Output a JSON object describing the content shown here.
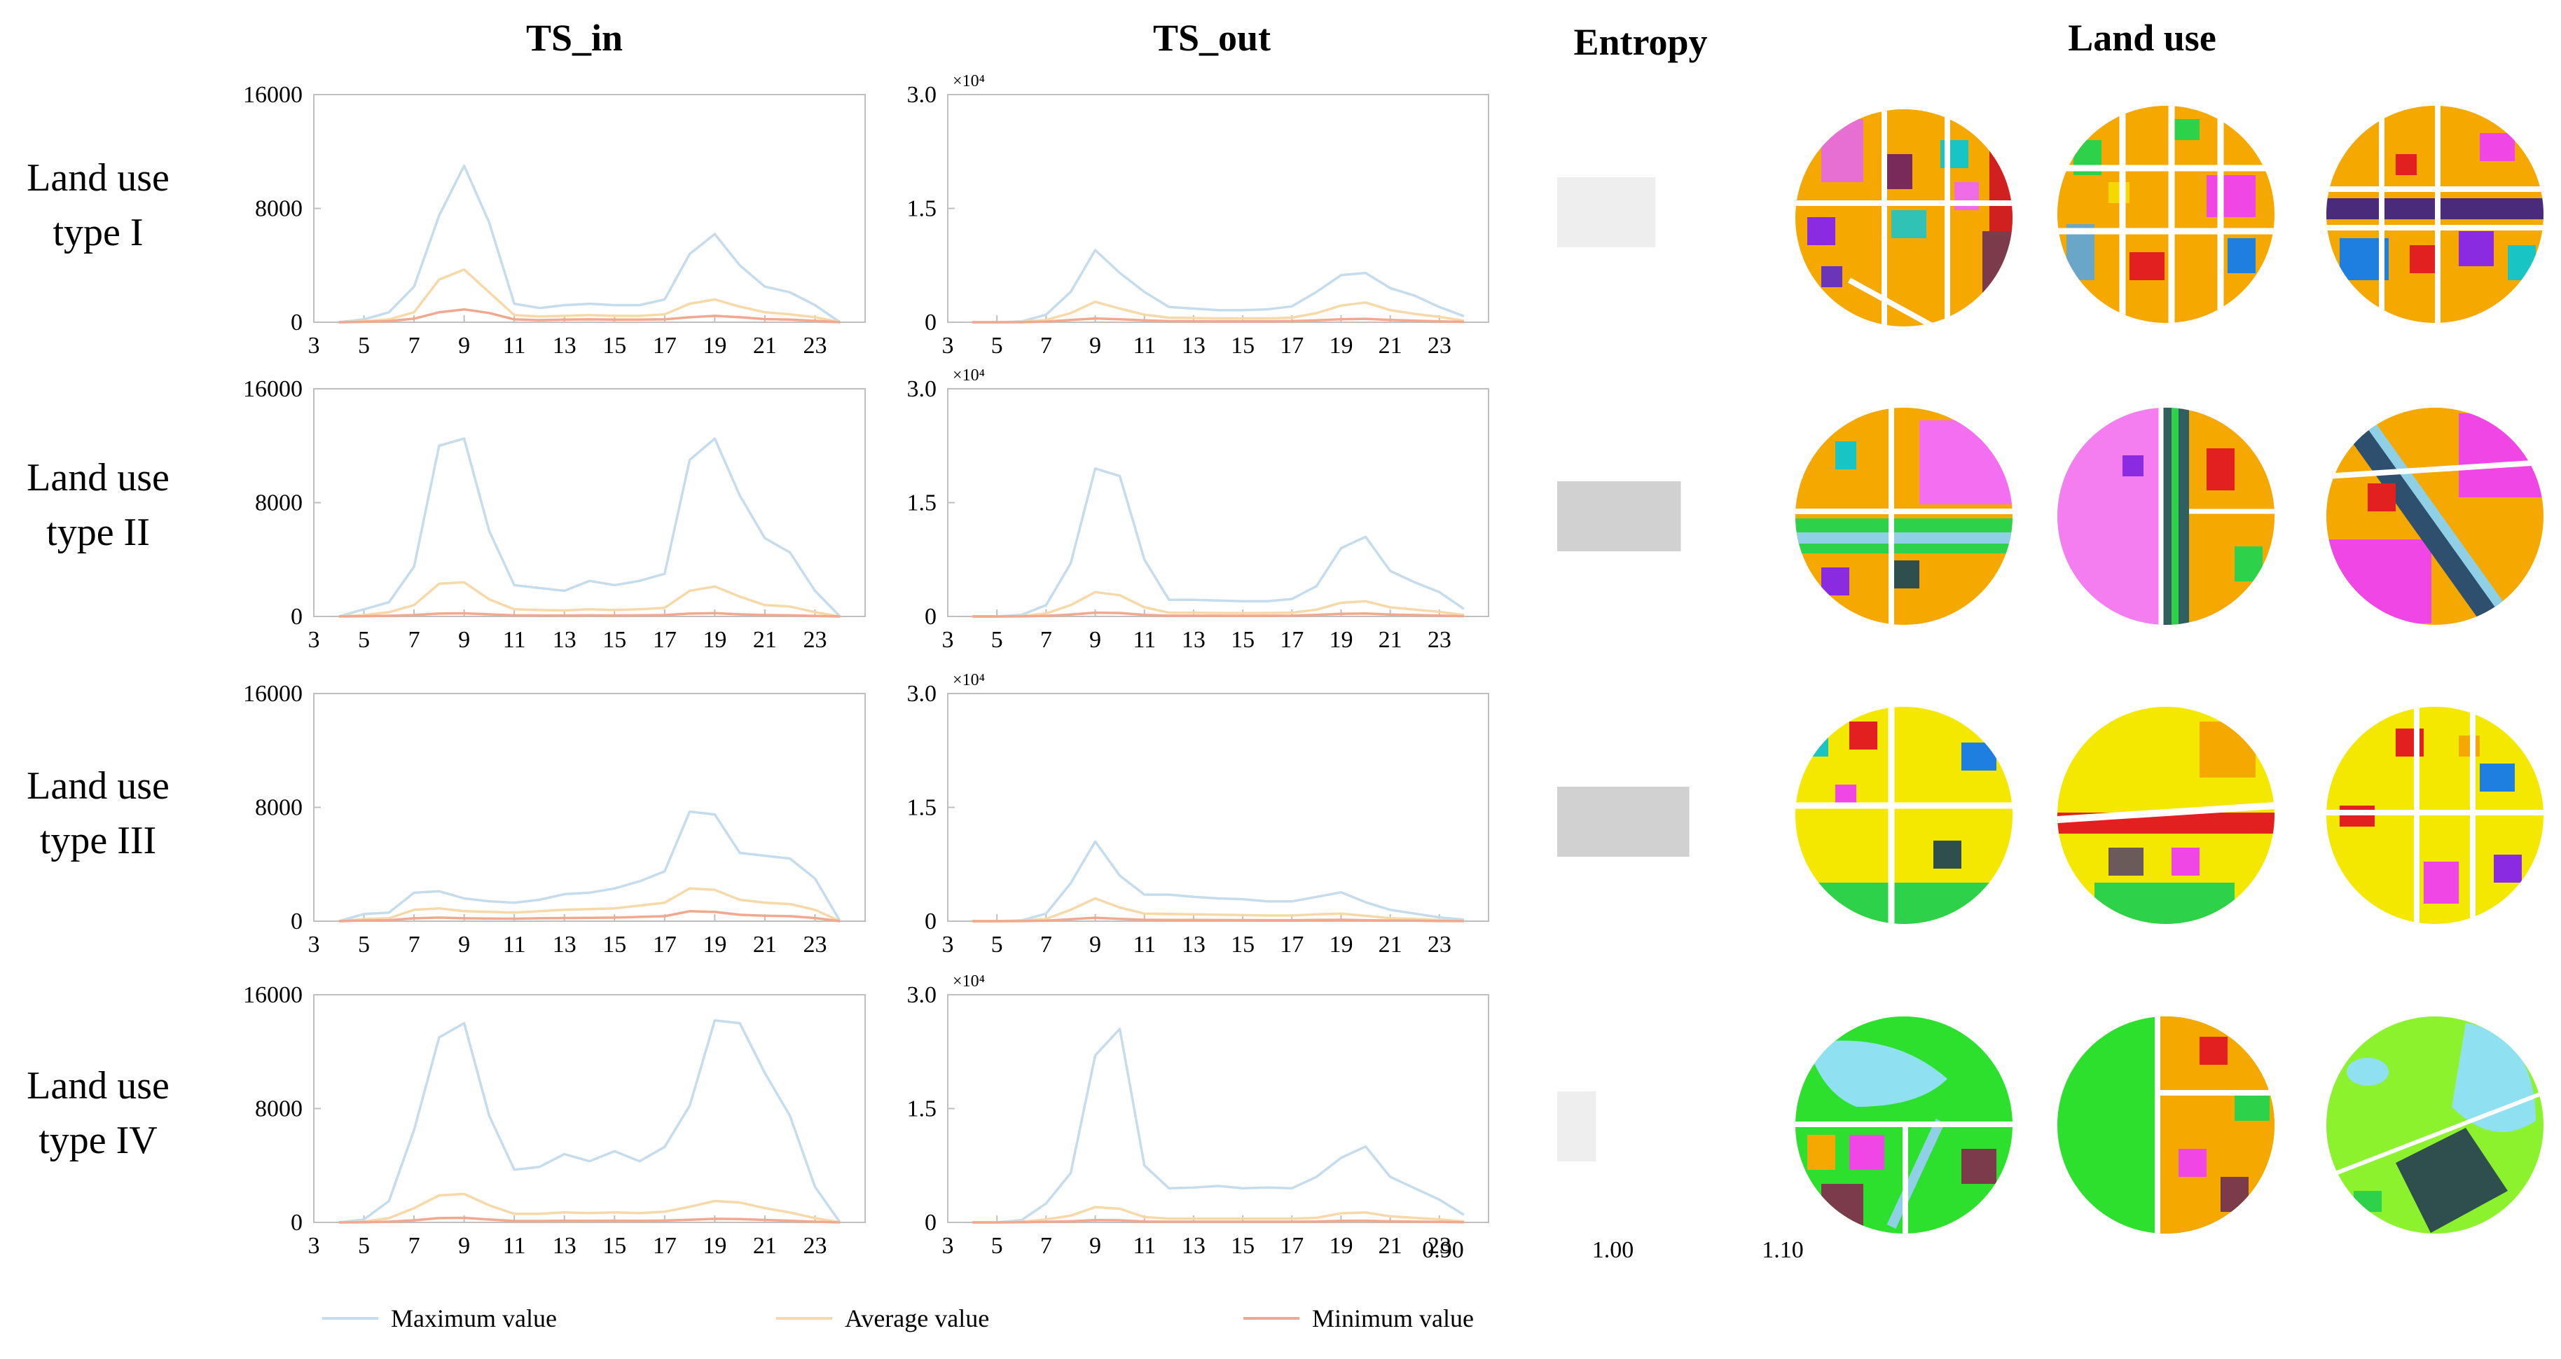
{
  "headers": {
    "ts_in": "TS_in",
    "ts_out": "TS_out",
    "entropy": "Entropy",
    "land_use": "Land use"
  },
  "row_labels": [
    [
      "Land use",
      "type I"
    ],
    [
      "Land use",
      "type II"
    ],
    [
      "Land use",
      "type III"
    ],
    [
      "Land use",
      "type IV"
    ]
  ],
  "legend": [
    {
      "label": "Maximum value",
      "color": "#c5dced"
    },
    {
      "label": "Average value",
      "color": "#f6d9a8"
    },
    {
      "label": "Minimum value",
      "color": "#f1a88e"
    }
  ],
  "colors": {
    "max": "#c5dced",
    "avg": "#f6d9a8",
    "min": "#f1a88e",
    "axis": "#bfbfbf",
    "entropy_light": "#eeeeee",
    "entropy_dark": "#d2d1d2"
  },
  "chart_data": [
    {
      "type": "line",
      "panel": "TS_in",
      "row": "Land use type I",
      "x": [
        4,
        5,
        6,
        7,
        8,
        9,
        10,
        11,
        12,
        13,
        14,
        15,
        16,
        17,
        18,
        19,
        20,
        21,
        22,
        23,
        24
      ],
      "series": [
        {
          "name": "Maximum value",
          "values": [
            0,
            200,
            700,
            2500,
            7500,
            11000,
            7000,
            1300,
            1000,
            1200,
            1300,
            1200,
            1200,
            1600,
            4800,
            6200,
            4000,
            2500,
            2100,
            1200,
            0
          ]
        },
        {
          "name": "Average value",
          "values": [
            0,
            60,
            200,
            700,
            3000,
            3700,
            2100,
            500,
            400,
            450,
            500,
            450,
            450,
            550,
            1300,
            1600,
            1100,
            700,
            550,
            350,
            0
          ]
        },
        {
          "name": "Minimum value",
          "values": [
            0,
            30,
            80,
            250,
            700,
            900,
            650,
            200,
            150,
            180,
            200,
            180,
            180,
            200,
            350,
            450,
            350,
            220,
            180,
            100,
            0
          ]
        }
      ],
      "ylim": [
        0,
        16000
      ],
      "yticks": [
        "0",
        "8000",
        "16000"
      ],
      "xticks": [
        "3",
        "5",
        "7",
        "9",
        "11",
        "13",
        "15",
        "17",
        "19",
        "21",
        "23"
      ]
    },
    {
      "type": "line",
      "panel": "TS_out",
      "row": "Land use type I",
      "x": [
        4,
        5,
        6,
        7,
        8,
        9,
        10,
        11,
        12,
        13,
        14,
        15,
        16,
        17,
        18,
        19,
        20,
        21,
        22,
        23,
        24
      ],
      "series": [
        {
          "name": "Maximum value",
          "values": [
            0,
            0,
            100,
            1000,
            4000,
            9500,
            6500,
            4000,
            2000,
            1800,
            1600,
            1600,
            1700,
            2100,
            4000,
            6200,
            6500,
            4500,
            3500,
            2000,
            800
          ]
        },
        {
          "name": "Average value",
          "values": [
            0,
            0,
            40,
            300,
            1200,
            2700,
            1800,
            1000,
            600,
            550,
            500,
            500,
            500,
            600,
            1200,
            2200,
            2600,
            1600,
            1100,
            700,
            200
          ]
        },
        {
          "name": "Minimum value",
          "values": [
            0,
            0,
            10,
            80,
            300,
            500,
            400,
            250,
            150,
            130,
            120,
            120,
            120,
            150,
            250,
            400,
            450,
            300,
            200,
            120,
            50
          ]
        }
      ],
      "ylim": [
        0,
        30000
      ],
      "yticks": [
        "0",
        "1.5",
        "3.0"
      ],
      "multiplier": "×10⁴",
      "xticks": [
        "3",
        "5",
        "7",
        "9",
        "11",
        "13",
        "15",
        "17",
        "19",
        "21",
        "23"
      ]
    },
    {
      "type": "line",
      "panel": "TS_in",
      "row": "Land use type II",
      "x": [
        4,
        5,
        6,
        7,
        8,
        9,
        10,
        11,
        12,
        13,
        14,
        15,
        16,
        17,
        18,
        19,
        20,
        21,
        22,
        23,
        24
      ],
      "series": [
        {
          "name": "Maximum value",
          "values": [
            0,
            500,
            1000,
            3500,
            12000,
            12500,
            6000,
            2200,
            2000,
            1800,
            2500,
            2200,
            2500,
            3000,
            11000,
            12500,
            8500,
            5500,
            4500,
            1800,
            0
          ]
        },
        {
          "name": "Average value",
          "values": [
            0,
            100,
            300,
            800,
            2300,
            2400,
            1200,
            500,
            450,
            420,
            500,
            450,
            500,
            600,
            1800,
            2100,
            1400,
            800,
            700,
            300,
            0
          ]
        },
        {
          "name": "Minimum value",
          "values": [
            0,
            20,
            50,
            100,
            200,
            220,
            150,
            80,
            70,
            60,
            80,
            70,
            80,
            100,
            200,
            230,
            150,
            100,
            80,
            40,
            0
          ]
        }
      ],
      "ylim": [
        0,
        16000
      ],
      "yticks": [
        "0",
        "8000",
        "16000"
      ],
      "xticks": [
        "3",
        "5",
        "7",
        "9",
        "11",
        "13",
        "15",
        "17",
        "19",
        "21",
        "23"
      ]
    },
    {
      "type": "line",
      "panel": "TS_out",
      "row": "Land use type II",
      "x": [
        4,
        5,
        6,
        7,
        8,
        9,
        10,
        11,
        12,
        13,
        14,
        15,
        16,
        17,
        18,
        19,
        20,
        21,
        22,
        23,
        24
      ],
      "series": [
        {
          "name": "Maximum value",
          "values": [
            0,
            0,
            200,
            1500,
            7000,
            19500,
            18500,
            7500,
            2200,
            2200,
            2100,
            2000,
            2000,
            2300,
            4000,
            9000,
            10500,
            6000,
            4500,
            3200,
            1000
          ]
        },
        {
          "name": "Average value",
          "values": [
            0,
            0,
            50,
            400,
            1500,
            3200,
            2800,
            1200,
            500,
            500,
            450,
            450,
            450,
            500,
            900,
            1800,
            2000,
            1200,
            900,
            600,
            200
          ]
        },
        {
          "name": "Minimum value",
          "values": [
            0,
            0,
            10,
            80,
            250,
            500,
            450,
            200,
            100,
            100,
            90,
            90,
            90,
            100,
            200,
            350,
            400,
            250,
            180,
            120,
            40
          ]
        }
      ],
      "ylim": [
        0,
        30000
      ],
      "yticks": [
        "0",
        "1.5",
        "3.0"
      ],
      "multiplier": "×10⁴",
      "xticks": [
        "3",
        "5",
        "7",
        "9",
        "11",
        "13",
        "15",
        "17",
        "19",
        "21",
        "23"
      ]
    },
    {
      "type": "line",
      "panel": "TS_in",
      "row": "Land use type III",
      "x": [
        4,
        5,
        6,
        7,
        8,
        9,
        10,
        11,
        12,
        13,
        14,
        15,
        16,
        17,
        18,
        19,
        20,
        21,
        22,
        23,
        24
      ],
      "series": [
        {
          "name": "Maximum value",
          "values": [
            0,
            500,
            600,
            2000,
            2100,
            1600,
            1400,
            1300,
            1500,
            1900,
            2000,
            2300,
            2800,
            3500,
            7700,
            7500,
            4800,
            4600,
            4400,
            3000,
            0
          ]
        },
        {
          "name": "Average value",
          "values": [
            0,
            150,
            200,
            800,
            900,
            700,
            650,
            600,
            700,
            800,
            850,
            900,
            1100,
            1300,
            2300,
            2200,
            1500,
            1300,
            1200,
            800,
            0
          ]
        },
        {
          "name": "Minimum value",
          "values": [
            0,
            50,
            70,
            200,
            250,
            200,
            180,
            170,
            200,
            220,
            230,
            250,
            300,
            350,
            700,
            650,
            450,
            380,
            350,
            220,
            0
          ]
        }
      ],
      "ylim": [
        0,
        16000
      ],
      "yticks": [
        "0",
        "8000",
        "16000"
      ],
      "xticks": [
        "3",
        "5",
        "7",
        "9",
        "11",
        "13",
        "15",
        "17",
        "19",
        "21",
        "23"
      ]
    },
    {
      "type": "line",
      "panel": "TS_out",
      "row": "Land use type III",
      "x": [
        4,
        5,
        6,
        7,
        8,
        9,
        10,
        11,
        12,
        13,
        14,
        15,
        16,
        17,
        18,
        19,
        20,
        21,
        22,
        23,
        24
      ],
      "series": [
        {
          "name": "Maximum value",
          "values": [
            0,
            0,
            100,
            1000,
            5000,
            10500,
            6000,
            3500,
            3500,
            3200,
            3000,
            2900,
            2600,
            2600,
            3200,
            3800,
            2500,
            1500,
            1000,
            500,
            200
          ]
        },
        {
          "name": "Average value",
          "values": [
            0,
            0,
            40,
            300,
            1500,
            3000,
            1800,
            1000,
            950,
            900,
            850,
            800,
            750,
            750,
            900,
            1000,
            700,
            400,
            300,
            150,
            50
          ]
        },
        {
          "name": "Minimum value",
          "values": [
            0,
            0,
            10,
            60,
            250,
            450,
            300,
            180,
            170,
            160,
            150,
            140,
            130,
            130,
            160,
            180,
            130,
            80,
            60,
            30,
            10
          ]
        }
      ],
      "ylim": [
        0,
        30000
      ],
      "yticks": [
        "0",
        "1.5",
        "3.0"
      ],
      "multiplier": "×10⁴",
      "xticks": [
        "3",
        "5",
        "7",
        "9",
        "11",
        "13",
        "15",
        "17",
        "19",
        "21",
        "23"
      ]
    },
    {
      "type": "line",
      "panel": "TS_in",
      "row": "Land use type IV",
      "x": [
        4,
        5,
        6,
        7,
        8,
        9,
        10,
        11,
        12,
        13,
        14,
        15,
        16,
        17,
        18,
        19,
        20,
        21,
        22,
        23,
        24
      ],
      "series": [
        {
          "name": "Maximum value",
          "values": [
            0,
            200,
            1500,
            6500,
            13000,
            14000,
            7500,
            3700,
            3900,
            4800,
            4300,
            5000,
            4300,
            5300,
            8200,
            14200,
            14000,
            10500,
            7500,
            2500,
            0
          ]
        },
        {
          "name": "Average value",
          "values": [
            0,
            50,
            300,
            1000,
            1900,
            2000,
            1200,
            600,
            600,
            700,
            650,
            700,
            650,
            750,
            1100,
            1500,
            1400,
            1000,
            700,
            300,
            0
          ]
        },
        {
          "name": "Minimum value",
          "values": [
            0,
            10,
            50,
            150,
            300,
            320,
            200,
            100,
            100,
            120,
            110,
            120,
            110,
            130,
            180,
            250,
            230,
            170,
            120,
            50,
            0
          ]
        }
      ],
      "ylim": [
        0,
        16000
      ],
      "yticks": [
        "0",
        "8000",
        "16000"
      ],
      "xticks": [
        "3",
        "5",
        "7",
        "9",
        "11",
        "13",
        "15",
        "17",
        "19",
        "21",
        "23"
      ]
    },
    {
      "type": "line",
      "panel": "TS_out",
      "row": "Land use type IV",
      "x": [
        4,
        5,
        6,
        7,
        8,
        9,
        10,
        11,
        12,
        13,
        14,
        15,
        16,
        17,
        18,
        19,
        20,
        21,
        22,
        23,
        24
      ],
      "series": [
        {
          "name": "Maximum value",
          "values": [
            0,
            0,
            300,
            2500,
            6500,
            22000,
            25500,
            7500,
            4500,
            4600,
            4800,
            4500,
            4600,
            4500,
            6000,
            8500,
            10000,
            6000,
            4500,
            3000,
            1000
          ]
        },
        {
          "name": "Average value",
          "values": [
            0,
            0,
            80,
            400,
            900,
            2000,
            1800,
            700,
            500,
            500,
            500,
            500,
            500,
            500,
            600,
            1200,
            1300,
            800,
            600,
            400,
            100
          ]
        },
        {
          "name": "Minimum value",
          "values": [
            0,
            0,
            20,
            80,
            150,
            300,
            280,
            120,
            90,
            90,
            90,
            90,
            90,
            90,
            110,
            200,
            220,
            140,
            100,
            60,
            20
          ]
        }
      ],
      "ylim": [
        0,
        30000
      ],
      "yticks": [
        "0",
        "1.5",
        "3.0"
      ],
      "multiplier": "×10⁴",
      "xticks": [
        "3",
        "5",
        "7",
        "9",
        "11",
        "13",
        "15",
        "17",
        "19",
        "21",
        "23"
      ]
    },
    {
      "type": "bar",
      "panel": "Entropy",
      "orientation": "horizontal",
      "categories": [
        "Land use type I",
        "Land use type II",
        "Land use type III",
        "Land use type IV"
      ],
      "values": [
        1.025,
        1.04,
        1.045,
        0.99
      ],
      "xlim": [
        0.9,
        1.1
      ],
      "xticks": [
        "0.90",
        "1.00",
        "1.10"
      ]
    }
  ]
}
